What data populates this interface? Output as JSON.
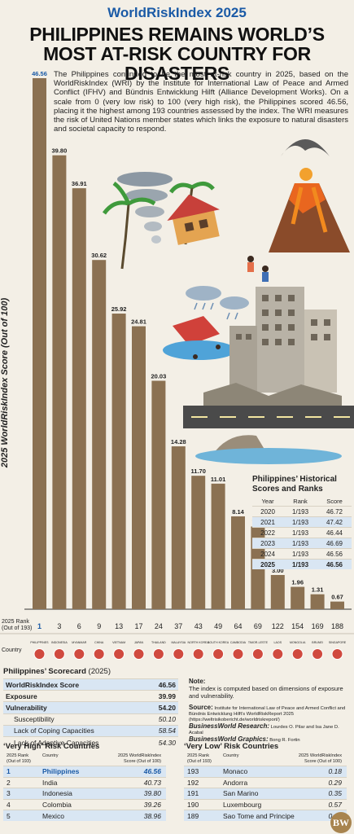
{
  "header": {
    "kicker": "WorldRiskIndex 2025",
    "headline_1": "PHILIPPINES REMAINS WORLD’S",
    "headline_2": "MOST AT-RISK COUNTRY FOR DISASTERS",
    "intro": "The Philippines continued to be the most at-risk country in 2025, based on the WorldRiskIndex (WRI) by the Institute for International Law of Peace and Armed Conflict (IFHV) and Bündnis Entwicklung Hilft (Alliance Development Works). On a scale from 0 (very low risk) to 100 (very high risk), the Philippines scored 46.56, placing it the highest among 193 countries assessed by the index. The WRI measures the risk of United Nations member states which links the exposure to natural disasters and societal capacity to respond."
  },
  "chart_data": {
    "type": "bar",
    "ylabel": "2025 WorldRiskIndex Score (Out of 100)",
    "ylim": [
      0,
      46.56
    ],
    "categories": [
      "PHILIPPINES",
      "INDONESIA",
      "MYANMAR",
      "CHINA",
      "VIETNAM",
      "JAPAN",
      "THAILAND",
      "MALAYSIA",
      "NORTH KOREA",
      "SOUTH KOREA",
      "CAMBODIA",
      "TIMOR-LESTE",
      "LAOS",
      "MONGOLIA",
      "BRUNEI",
      "SINGAPORE"
    ],
    "values": [
      46.56,
      39.8,
      36.91,
      30.62,
      25.92,
      24.81,
      20.03,
      14.28,
      11.7,
      11.01,
      8.14,
      7.25,
      3.0,
      1.96,
      1.31,
      0.67
    ],
    "value_labels": [
      "46.56",
      "39.80",
      "36.91",
      "30.62",
      "25.92",
      "24.81",
      "20.03",
      "14.28",
      "11.70",
      "11.01",
      "8.14",
      "7.25",
      "3.00",
      "1.96",
      "1.31",
      "0.67"
    ],
    "ranks": [
      "1",
      "3",
      "6",
      "9",
      "13",
      "17",
      "24",
      "37",
      "43",
      "49",
      "64",
      "69",
      "122",
      "154",
      "169",
      "188"
    ],
    "rank_axis_label": [
      "2025 Rank",
      "(Out of 193)"
    ],
    "country_axis_label": "Country",
    "highlight_color": "#1a5aa6",
    "bar_color": "#8b7152"
  },
  "historical": {
    "title_1": "Philippines’ Historical",
    "title_2": "Scores and Ranks",
    "headers": [
      "Year",
      "Rank",
      "Score"
    ],
    "rows": [
      [
        "2020",
        "1/193",
        "46.72"
      ],
      [
        "2021",
        "1/193",
        "47.42"
      ],
      [
        "2022",
        "1/193",
        "46.44"
      ],
      [
        "2023",
        "1/193",
        "46.69"
      ],
      [
        "2024",
        "1/193",
        "46.56"
      ],
      [
        "2025",
        "1/193",
        "46.56"
      ]
    ]
  },
  "scorecard": {
    "title": "Philippines’ Scorecard",
    "title_year": "(2025)",
    "rows": [
      {
        "label": "WorldRiskIndex Score",
        "value": "46.56"
      },
      {
        "label": "Exposure",
        "value": "39.99"
      },
      {
        "label": "Vulnerability",
        "value": "54.20"
      },
      {
        "label": "Susceptibility",
        "value": "50.10"
      },
      {
        "label": "Lack of Coping Capacities",
        "value": "58.54"
      },
      {
        "label": "Lack of Adaptive Capacities",
        "value": "54.30"
      }
    ]
  },
  "note": {
    "title": "Note:",
    "text": "The index is computed based on dimensions of exposure and vulnerability.",
    "source_label": "Source:",
    "source": "Institute for International Law of Peace and Armed Conflict and Bündnis Entwicklung Hilft’s WorldRiskReport 2025 (https://weltrisikobericht.de/worldriskreport/)",
    "research_label": "BusinessWorld Research:",
    "research": "Lourdes O. Pilar and Isa Jane D. Acabal",
    "graphics_label": "BusinessWorld Graphics:",
    "graphics": "Bong R. Fortin"
  },
  "very_high": {
    "title": "‘Very High’ Risk Countries",
    "h_rank": "2025 Rank (Out of 193)",
    "h_country": "Country",
    "h_score": "2025 WorldRiskIndex Score (Out of 100)",
    "rows": [
      [
        "1",
        "Philippines",
        "46.56"
      ],
      [
        "2",
        "India",
        "40.73"
      ],
      [
        "3",
        "Indonesia",
        "39.80"
      ],
      [
        "4",
        "Colombia",
        "39.26"
      ],
      [
        "5",
        "Mexico",
        "38.96"
      ]
    ]
  },
  "very_low": {
    "title": "‘Very Low’ Risk Countries",
    "h_rank": "2025 Rank (Out of 193)",
    "h_country": "Country",
    "h_score": "2025 WorldRiskIndex Score (Out of 100)",
    "rows": [
      [
        "193",
        "Monaco",
        "0.18"
      ],
      [
        "192",
        "Andorra",
        "0.29"
      ],
      [
        "191",
        "San Marino",
        "0.35"
      ],
      [
        "190",
        "Luxembourg",
        "0.57"
      ],
      [
        "189",
        "Sao Tome and Principe",
        "0.61"
      ]
    ]
  },
  "logo": "BW"
}
